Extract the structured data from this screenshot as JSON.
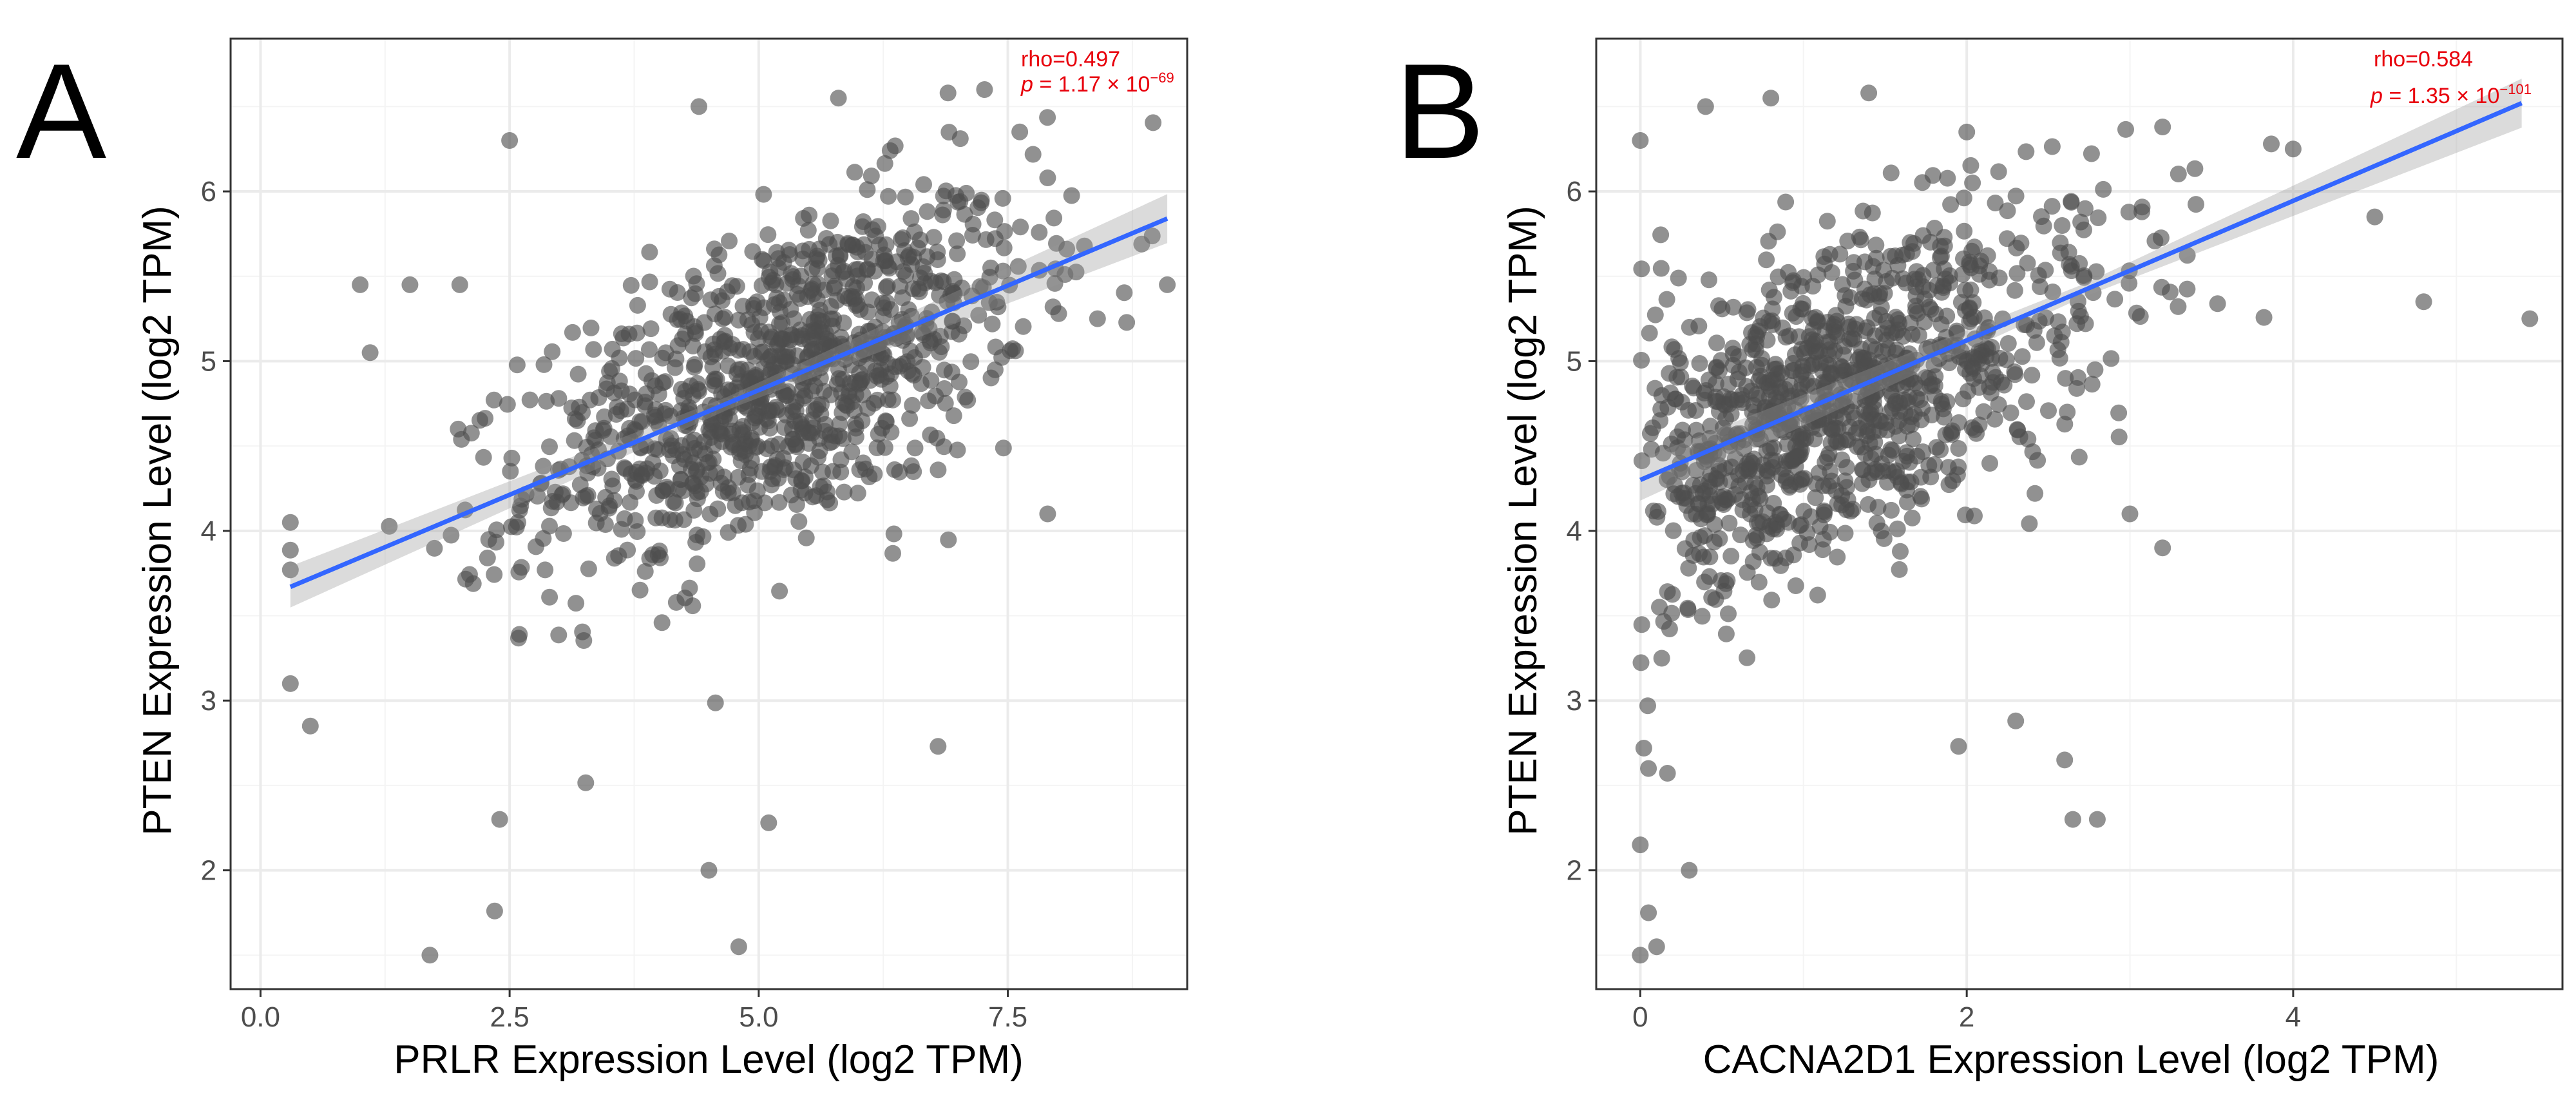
{
  "chart_data": [
    {
      "type": "scatter",
      "panel_label": "A",
      "xlabel": "PRLR Expression Level (log2 TPM)",
      "ylabel": "PTEN Expression Level (log2 TPM)",
      "xlim": [
        -0.3,
        9.3
      ],
      "ylim": [
        1.3,
        6.9
      ],
      "xticks": [
        0,
        2.5,
        5,
        7.5
      ],
      "xtick_labels": [
        "0.0",
        "2.5",
        "5.0",
        "7.5"
      ],
      "yticks": [
        2,
        3,
        4,
        5,
        6
      ],
      "ytick_labels": [
        "2",
        "3",
        "4",
        "5",
        "6"
      ],
      "stats": {
        "rho": "rho=0.497",
        "p_prefix": "p",
        "p_mid": " = 1.17 × 10",
        "p_exp": "−69"
      },
      "regression": {
        "x": [
          0.3,
          9.1
        ],
        "y": [
          3.67,
          5.84
        ],
        "color": "#3366ff"
      },
      "point_color": "#4d4d4d",
      "highlight_points": [
        [
          1.7,
          1.5
        ],
        [
          4.8,
          1.55
        ],
        [
          2.35,
          1.76
        ],
        [
          4.5,
          2.0
        ],
        [
          2.4,
          2.3
        ],
        [
          5.1,
          2.28
        ],
        [
          0.3,
          3.1
        ],
        [
          0.5,
          2.85
        ],
        [
          6.8,
          2.73
        ],
        [
          0.3,
          4.05
        ],
        [
          0.3,
          3.77
        ],
        [
          1.0,
          5.45
        ],
        [
          2.5,
          6.3
        ],
        [
          4.4,
          6.5
        ],
        [
          5.8,
          6.55
        ],
        [
          6.9,
          6.58
        ],
        [
          7.9,
          6.08
        ],
        [
          9.1,
          5.45
        ],
        [
          7.9,
          4.1
        ],
        [
          8.4,
          5.25
        ],
        [
          2.0,
          5.45
        ],
        [
          1.5,
          5.45
        ],
        [
          1.1,
          5.05
        ]
      ],
      "cloud": {
        "n": 1050,
        "x_mean": 5.2,
        "x_sd": 1.25,
        "x_range": [
          0.3,
          9.1
        ],
        "slope": 0.246,
        "intercept": 3.6,
        "resid_sd": 0.45
      }
    },
    {
      "type": "scatter",
      "panel_label": "B",
      "xlabel": "CACNA2D1 Expression Level (log2 TPM)",
      "ylabel": "PTEN Expression Level (log2 TPM)",
      "xlim": [
        -0.27,
        5.65
      ],
      "ylim": [
        1.3,
        6.9
      ],
      "xticks": [
        0,
        2,
        4
      ],
      "xtick_labels": [
        "0",
        "2",
        "4"
      ],
      "yticks": [
        2,
        3,
        4,
        5,
        6
      ],
      "ytick_labels": [
        "2",
        "3",
        "4",
        "5",
        "6"
      ],
      "stats": {
        "rho": "rho=0.584",
        "p_prefix": "p",
        "p_mid": " = 1.35 × 10",
        "p_exp": "−101"
      },
      "regression": {
        "x": [
          0.0,
          5.4
        ],
        "y": [
          4.3,
          6.52
        ],
        "color": "#3366ff"
      },
      "point_color": "#4d4d4d",
      "highlight_points": [
        [
          0.0,
          1.5
        ],
        [
          0.1,
          1.55
        ],
        [
          0.05,
          1.75
        ],
        [
          0.3,
          2.0
        ],
        [
          0.0,
          2.15
        ],
        [
          0.05,
          2.6
        ],
        [
          0.0,
          6.3
        ],
        [
          0.4,
          6.5
        ],
        [
          0.8,
          6.55
        ],
        [
          1.4,
          6.58
        ],
        [
          2.0,
          6.35
        ],
        [
          3.2,
          6.38
        ],
        [
          4.0,
          6.25
        ],
        [
          5.45,
          5.25
        ],
        [
          4.5,
          5.85
        ],
        [
          2.6,
          2.65
        ],
        [
          2.65,
          2.3
        ],
        [
          2.8,
          2.3
        ],
        [
          2.3,
          2.88
        ],
        [
          1.95,
          2.73
        ],
        [
          3.2,
          3.9
        ],
        [
          3.0,
          4.1
        ],
        [
          4.8,
          5.35
        ]
      ],
      "cloud": {
        "n": 1050,
        "x_mean": 1.3,
        "x_sd": 0.85,
        "x_range": [
          0.0,
          5.4
        ],
        "slope": 0.41,
        "intercept": 4.3,
        "resid_sd": 0.45
      }
    }
  ]
}
